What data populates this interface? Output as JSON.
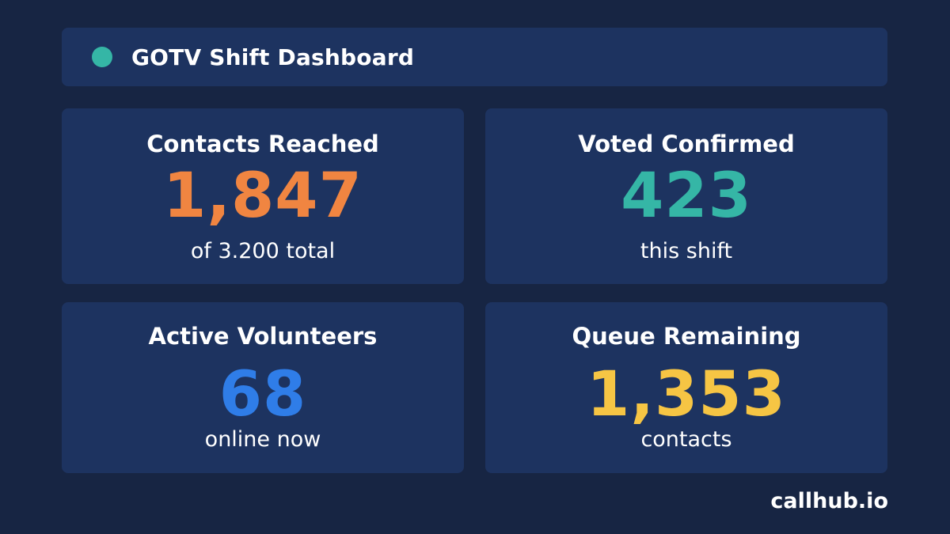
{
  "header": {
    "title": "GOTV Shift Dashboard",
    "status_dot_color": "#35b6a6"
  },
  "cards": [
    {
      "title": "Contacts Reached",
      "value": "1,847",
      "subtitle": "of 3.200 total",
      "value_color": "#f08541"
    },
    {
      "title": "Voted Confirmed",
      "value": "423",
      "subtitle": "this shift",
      "value_color": "#35b6a6"
    },
    {
      "title": "Active Volunteers",
      "value": "68",
      "subtitle": "online now",
      "value_color": "#2f7de8"
    },
    {
      "title": "Queue Remaining",
      "value": "1,353",
      "subtitle": "contacts",
      "value_color": "#f6c544"
    }
  ],
  "footer": {
    "brand": "callhub.io"
  },
  "colors": {
    "background": "#172543",
    "card": "#1d3360",
    "text": "#ffffff"
  }
}
